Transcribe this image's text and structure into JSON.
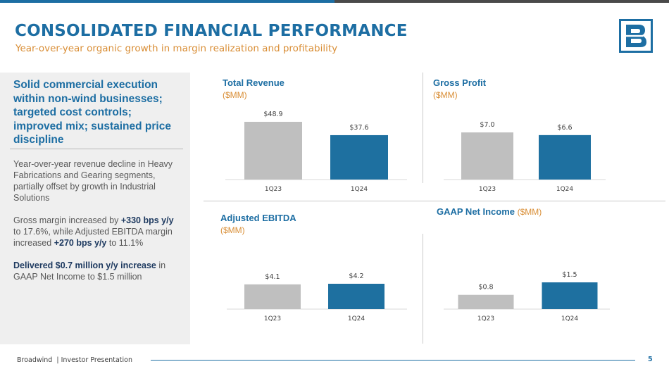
{
  "header": {
    "title": "CONSOLIDATED FINANCIAL PERFORMANCE",
    "subtitle": "Year-over-year organic growth in margin realization and profitability"
  },
  "left_panel": {
    "headline": "Solid commercial execution within non-wind businesses; targeted cost controls; improved mix; sustained price discipline",
    "p1": "Year-over-year revenue decline in Heavy Fabrications and Gearing segments, partially offset by growth in Industrial Solutions",
    "p2_a": "Gross margin increased by ",
    "p2_b": "+330 bps y/y",
    "p2_c": " to 17.6%, while Adjusted EBITDA margin increased ",
    "p2_d": "+270 bps y/y",
    "p2_e": " to 11.1%",
    "p3_a": "Delivered $0.7 million y/y increase",
    "p3_b": " in GAAP Net Income to $1.5 million"
  },
  "colors": {
    "accent": "#1d6ea3",
    "orange": "#d98e36",
    "bar_prior": "#bfbfbf",
    "bar_current": "#1e70a0",
    "navy": "#1e3a60"
  },
  "chart_data": [
    {
      "id": "revenue",
      "type": "bar",
      "title": "Total Revenue",
      "unit": "($MM)",
      "categories": [
        "1Q23",
        "1Q24"
      ],
      "values": [
        48.9,
        37.6
      ],
      "labels": [
        "$48.9",
        "$37.6"
      ],
      "ylim": [
        0,
        48.9
      ]
    },
    {
      "id": "gross",
      "type": "bar",
      "title": "Gross Profit",
      "unit": "($MM)",
      "categories": [
        "1Q23",
        "1Q24"
      ],
      "values": [
        7.0,
        6.6
      ],
      "labels": [
        "$7.0",
        "$6.6"
      ],
      "ylim": [
        0,
        9.2
      ]
    },
    {
      "id": "ebitda",
      "type": "bar",
      "title": "Adjusted EBITDA",
      "unit": "($MM)",
      "categories": [
        "1Q23",
        "1Q24"
      ],
      "values": [
        4.1,
        4.2
      ],
      "labels": [
        "$4.1",
        "$4.2"
      ],
      "ylim": [
        0,
        4.2
      ]
    },
    {
      "id": "netinc",
      "type": "bar",
      "title": "GAAP Net Income",
      "unit": "($MM)",
      "categories": [
        "1Q23",
        "1Q24"
      ],
      "values": [
        0.8,
        1.5
      ],
      "labels": [
        "$0.8",
        "$1.5"
      ],
      "ylim": [
        0,
        1.5
      ]
    }
  ],
  "footer": {
    "company": "Broadwind",
    "separator": "|",
    "doc": "Investor Presentation",
    "page": "5"
  }
}
